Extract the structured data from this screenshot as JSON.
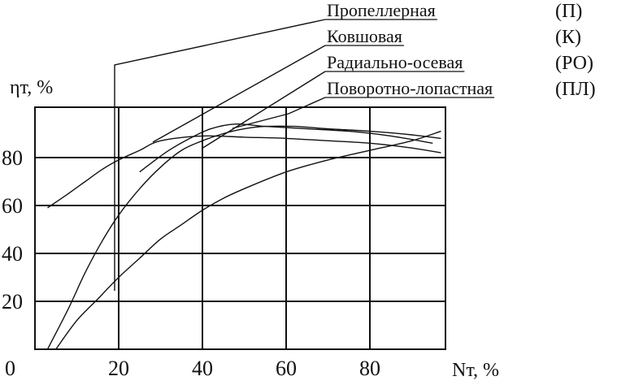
{
  "chart_data": {
    "type": "line",
    "xlabel": "Nт, %",
    "ylabel": "ηт, %",
    "x_ticks": [
      "20",
      "40",
      "60",
      "80"
    ],
    "y_ticks": [
      "20",
      "40",
      "60",
      "80"
    ],
    "origin_label": "0",
    "xlim": [
      0,
      100
    ],
    "ylim": [
      0,
      100
    ],
    "grid": true,
    "legend_position": "top-right",
    "series": [
      {
        "name": "Пропеллерная",
        "code": "(П)",
        "points": [
          [
            3,
            59
          ],
          [
            8,
            65
          ],
          [
            12,
            70
          ],
          [
            16,
            75
          ],
          [
            20,
            79
          ],
          [
            25,
            83
          ],
          [
            30,
            87
          ],
          [
            40,
            89
          ],
          [
            50,
            88.5
          ],
          [
            60,
            88
          ],
          [
            70,
            87
          ],
          [
            80,
            86
          ],
          [
            90,
            84
          ],
          [
            97,
            82
          ]
        ]
      },
      {
        "name": "Ковшовая",
        "code": "(К)",
        "points": [
          [
            25,
            74
          ],
          [
            28,
            78
          ],
          [
            32,
            83
          ],
          [
            37,
            88
          ],
          [
            42,
            92
          ],
          [
            48,
            94
          ],
          [
            55,
            93
          ],
          [
            65,
            92
          ],
          [
            75,
            91
          ],
          [
            85,
            89
          ],
          [
            95,
            86
          ]
        ]
      },
      {
        "name": "Радиально-осевая",
        "code": "(РО)",
        "points": [
          [
            3,
            0
          ],
          [
            8,
            17
          ],
          [
            12,
            32
          ],
          [
            16,
            45
          ],
          [
            20,
            56
          ],
          [
            25,
            67
          ],
          [
            30,
            76
          ],
          [
            35,
            83
          ],
          [
            40,
            87
          ],
          [
            45,
            90
          ],
          [
            50,
            92
          ],
          [
            55,
            93
          ],
          [
            62,
            93
          ],
          [
            70,
            92
          ],
          [
            80,
            91
          ],
          [
            90,
            89.5
          ],
          [
            97,
            88
          ]
        ]
      },
      {
        "name": "Поворотно-лопастная",
        "code": "(ПЛ)",
        "points": [
          [
            5,
            0
          ],
          [
            10,
            12
          ],
          [
            15,
            21
          ],
          [
            20,
            30
          ],
          [
            25,
            38
          ],
          [
            30,
            46
          ],
          [
            35,
            52
          ],
          [
            40,
            58
          ],
          [
            45,
            63
          ],
          [
            50,
            67
          ],
          [
            60,
            74
          ],
          [
            70,
            79
          ],
          [
            80,
            83
          ],
          [
            90,
            87
          ],
          [
            97,
            91
          ]
        ]
      }
    ]
  },
  "colors": {
    "ink": "#111111",
    "background": "#ffffff"
  }
}
